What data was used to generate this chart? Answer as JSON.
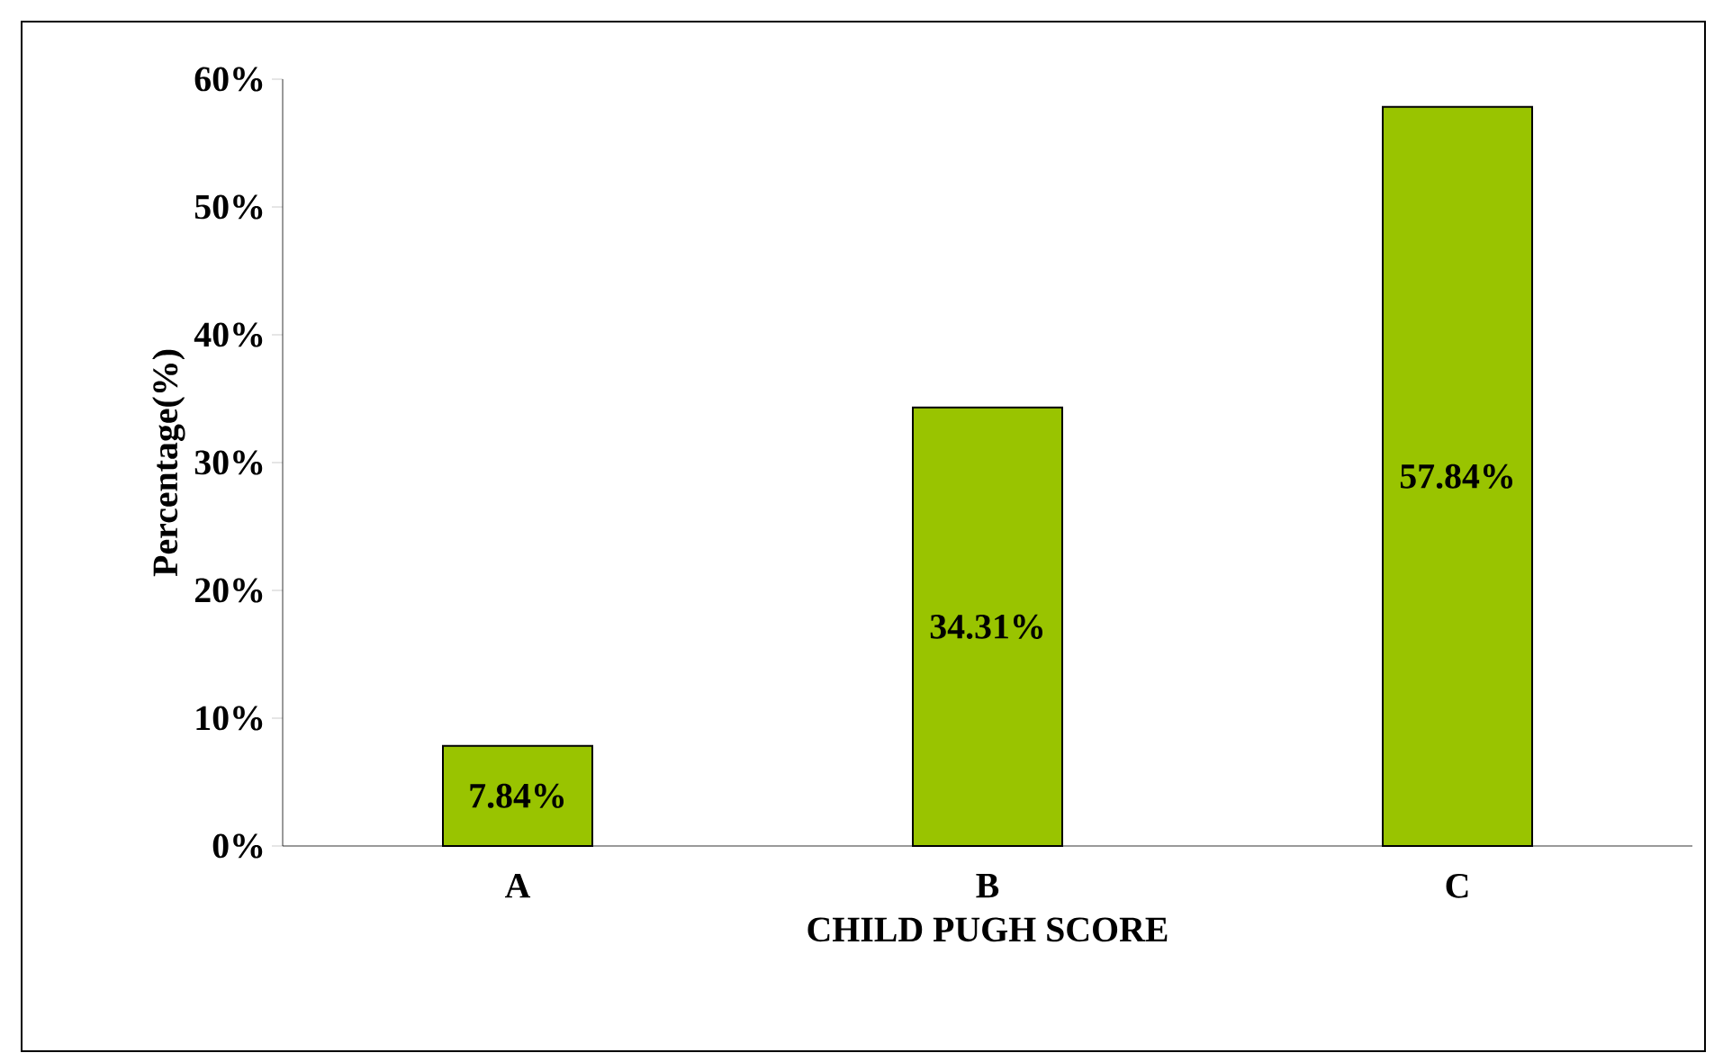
{
  "chart_data": {
    "type": "bar",
    "xlabel": "CHILD PUGH SCORE",
    "ylabel": "Percentage(%)",
    "categories": [
      "A",
      "B",
      "C"
    ],
    "values": [
      7.84,
      34.31,
      57.84
    ],
    "value_labels": [
      "7.84%",
      "34.31%",
      "57.84%"
    ],
    "color": "#99c400",
    "ylim": [
      0,
      60
    ],
    "yticks": [
      {
        "value": 0,
        "label": "0%"
      },
      {
        "value": 10,
        "label": "10%"
      },
      {
        "value": 20,
        "label": "20%"
      },
      {
        "value": 30,
        "label": "30%"
      },
      {
        "value": 40,
        "label": "40%"
      },
      {
        "value": 50,
        "label": "50%"
      },
      {
        "value": 60,
        "label": "60%"
      }
    ]
  }
}
